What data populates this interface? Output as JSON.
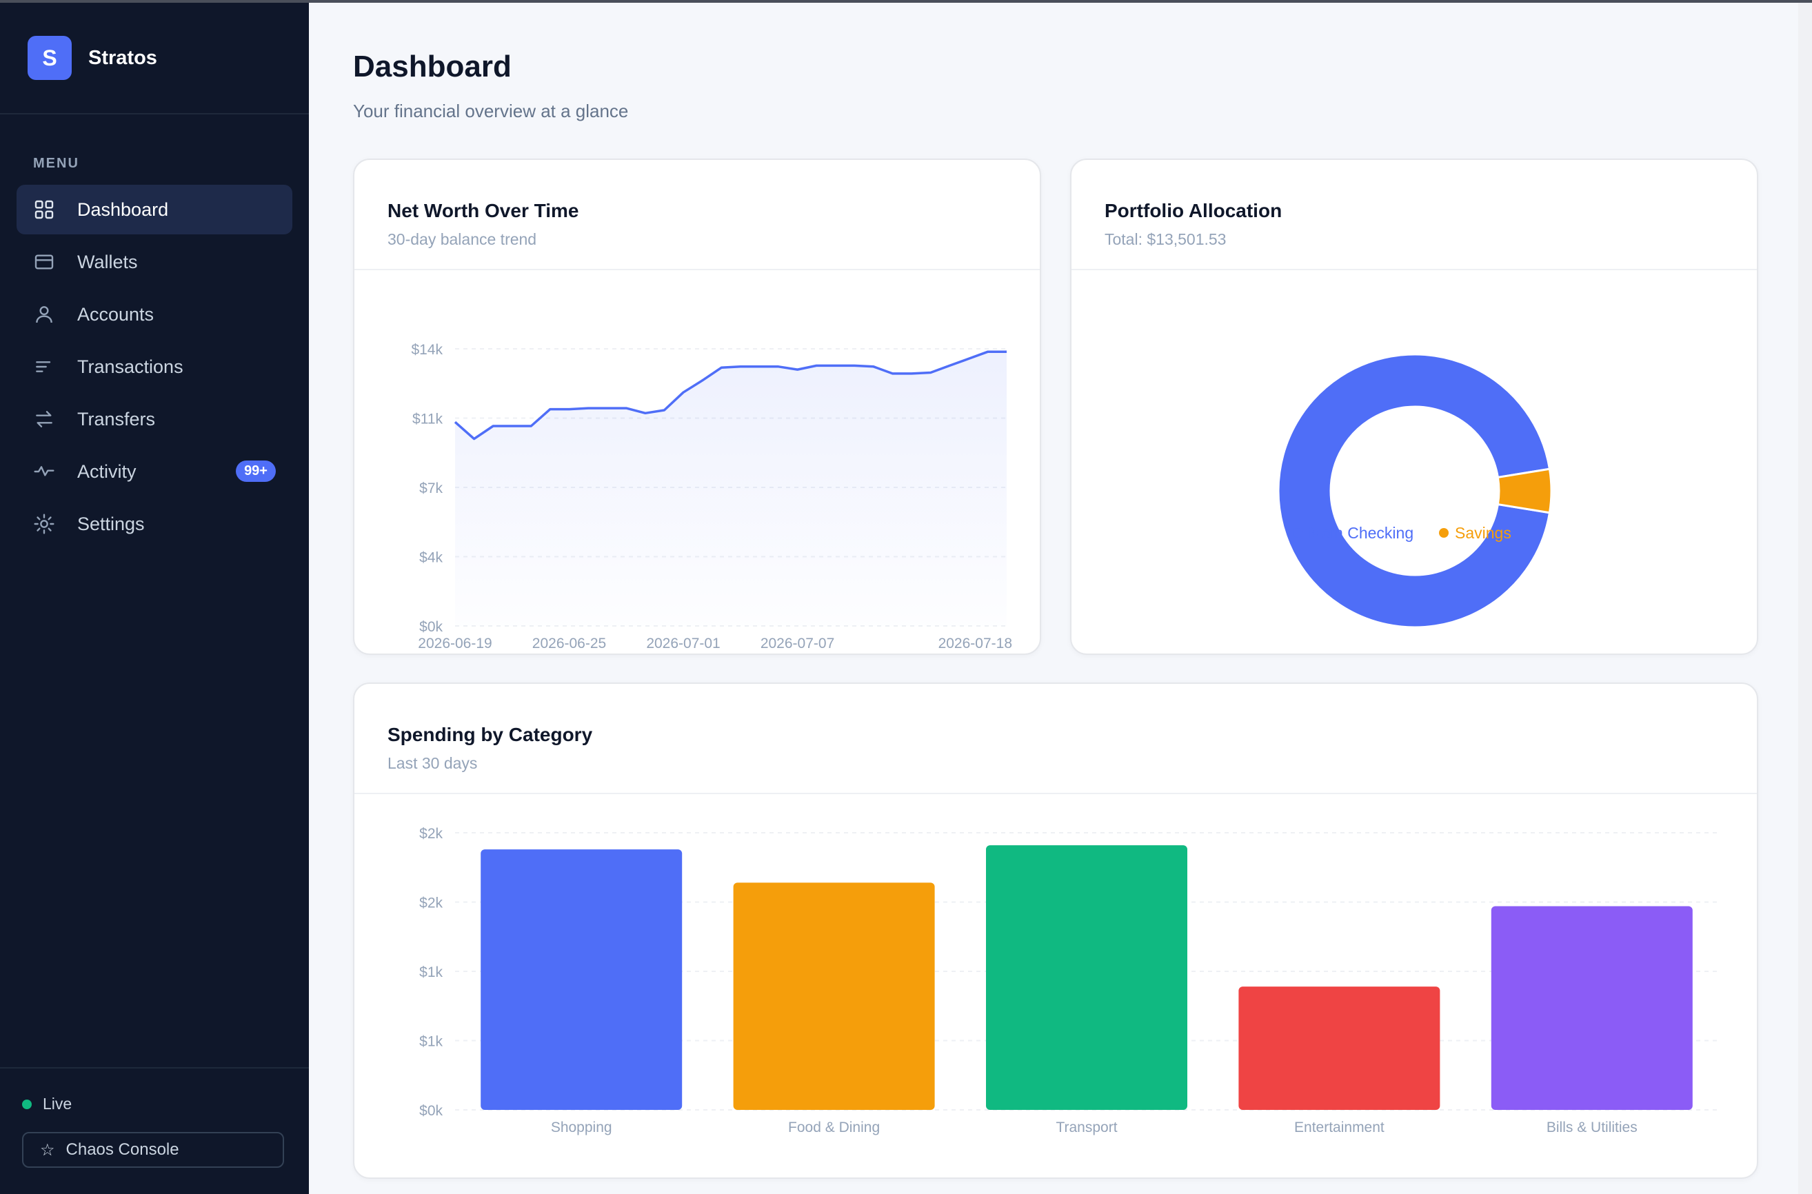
{
  "brand": {
    "logo_letter": "S",
    "name": "Stratos"
  },
  "menu_label": "MENU",
  "nav": [
    {
      "label": "Dashboard",
      "icon": "grid-icon",
      "active": true
    },
    {
      "label": "Wallets",
      "icon": "wallet-icon"
    },
    {
      "label": "Accounts",
      "icon": "user-icon"
    },
    {
      "label": "Transactions",
      "icon": "list-icon"
    },
    {
      "label": "Transfers",
      "icon": "arrows-icon"
    },
    {
      "label": "Activity",
      "icon": "pulse-icon",
      "badge": "99+"
    },
    {
      "label": "Settings",
      "icon": "gear-icon"
    }
  ],
  "status": {
    "live_label": "Live",
    "live_color": "#10b981"
  },
  "chaos_console": {
    "label": "Chaos Console",
    "icon": "star-icon"
  },
  "page": {
    "title": "Dashboard",
    "subtitle": "Your financial overview at a glance"
  },
  "net_worth": {
    "title": "Net Worth Over Time",
    "subtitle": "30-day balance trend"
  },
  "portfolio": {
    "title": "Portfolio Allocation",
    "subtitle": "Total: $13,501.53"
  },
  "spending": {
    "title": "Spending by Category",
    "subtitle": "Last 30 days"
  },
  "colors": {
    "accent": "#4f6ef7",
    "sidebar_bg": "#0f172a",
    "orange": "#f59e0b",
    "green": "#10b981",
    "red": "#ef4444",
    "purple": "#8b5cf6"
  },
  "chart_data": [
    {
      "type": "line",
      "title": "Net Worth Over Time",
      "ylabel": "",
      "xlabel": "",
      "ylim": [
        0,
        14000
      ],
      "y_ticks": [
        {
          "value": 0,
          "label": "$0k"
        },
        {
          "value": 3500,
          "label": "$4k"
        },
        {
          "value": 7000,
          "label": "$7k"
        },
        {
          "value": 10500,
          "label": "$11k"
        },
        {
          "value": 14000,
          "label": "$14k"
        }
      ],
      "x_tick_labels": [
        "2026-06-19",
        "2026-06-25",
        "2026-07-01",
        "2026-07-07",
        "2026-07-18"
      ],
      "x_tick_index": [
        0,
        6,
        12,
        18,
        28
      ],
      "series": [
        {
          "color": "#4f6ef7",
          "values": [
            10300,
            9450,
            10100,
            10100,
            10100,
            10950,
            10950,
            11000,
            11000,
            11000,
            10750,
            10900,
            11800,
            12400,
            13050,
            13100,
            13100,
            13100,
            12950,
            13150,
            13150,
            13150,
            13100,
            12750,
            12750,
            12800,
            13150,
            13500,
            13850,
            13850
          ]
        }
      ]
    },
    {
      "type": "pie",
      "title": "Portfolio Allocation",
      "slices": [
        {
          "name": "Main Checking",
          "value": 12810,
          "color": "#4f6ef7"
        },
        {
          "name": "Savings",
          "value": 691.53,
          "color": "#f59e0b"
        }
      ]
    },
    {
      "type": "bar",
      "title": "Spending by Category",
      "categories": [
        "Shopping",
        "Food & Dining",
        "Transport",
        "Entertainment",
        "Bills & Utilities"
      ],
      "values": [
        1880,
        1640,
        1910,
        890,
        1470
      ],
      "colors": [
        "#4f6ef7",
        "#f59e0b",
        "#10b981",
        "#ef4444",
        "#8b5cf6"
      ],
      "ylim": [
        0,
        2000
      ],
      "y_ticks": [
        {
          "value": 0,
          "label": "$0k"
        },
        {
          "value": 500,
          "label": "$1k"
        },
        {
          "value": 1000,
          "label": "$1k"
        },
        {
          "value": 1500,
          "label": "$2k"
        },
        {
          "value": 2000,
          "label": "$2k"
        }
      ]
    }
  ]
}
